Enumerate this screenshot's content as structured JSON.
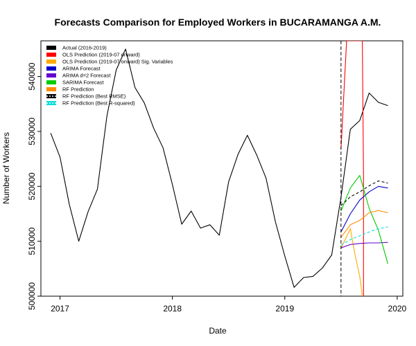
{
  "chart_data": {
    "type": "line",
    "title": "Forecasts Comparison for Employed Workers in BUCARAMANGA A.M.",
    "xlabel": "Date",
    "ylabel": "Number of Workers",
    "xlim": [
      2016.83,
      2020.05
    ],
    "ylim": [
      500000,
      546500
    ],
    "x_ticks": [
      2017,
      2018,
      2019,
      2020
    ],
    "x_tick_labels": [
      "2017",
      "2018",
      "2019",
      "2020"
    ],
    "y_ticks": [
      500000,
      510000,
      520000,
      530000,
      540000
    ],
    "y_tick_labels": [
      "500000",
      "510000",
      "520000",
      "530000",
      "540000"
    ],
    "grid": false,
    "legend_position": "top-left",
    "forecast_start": 2019.5,
    "series": [
      {
        "name": "Actual (2016-2019)",
        "color": "#000000",
        "dash": "solid",
        "x": [
          2016.917,
          2017.0,
          2017.083,
          2017.167,
          2017.25,
          2017.333,
          2017.417,
          2017.5,
          2017.583,
          2017.667,
          2017.75,
          2017.833,
          2017.917,
          2018.0,
          2018.083,
          2018.167,
          2018.25,
          2018.333,
          2018.417,
          2018.5,
          2018.583,
          2018.667,
          2018.75,
          2018.833,
          2018.917,
          2019.0,
          2019.083,
          2019.167,
          2019.25,
          2019.333,
          2019.417,
          2019.5,
          2019.583,
          2019.667,
          2019.75,
          2019.833,
          2019.917
        ],
        "y": [
          529700,
          525300,
          516700,
          510000,
          515400,
          519500,
          532800,
          541200,
          545000,
          538000,
          535200,
          530600,
          527000,
          520300,
          513100,
          515500,
          512400,
          513000,
          511100,
          520800,
          525800,
          529300,
          525700,
          521500,
          513500,
          507300,
          501600,
          503400,
          503600,
          505100,
          507500,
          518000,
          530400,
          532000,
          537000,
          535300,
          534700
        ]
      },
      {
        "name": "OLS Prediction (2019-07 onward)",
        "color": "#ff0000",
        "dash": "solid",
        "x": [
          2019.5,
          2019.55,
          2019.6,
          2019.67,
          2019.69,
          2019.7,
          2019.7
        ],
        "y": [
          526700,
          546500,
          546500,
          546500,
          546500,
          522000,
          500000
        ]
      },
      {
        "name": "OLS Prediction (2019-07 onward) Sig. Variables",
        "color": "#ffaa00",
        "dash": "solid",
        "x": [
          2019.5,
          2019.583,
          2019.625,
          2019.667,
          2019.69
        ],
        "y": [
          508700,
          512300,
          507500,
          503600,
          500000
        ]
      },
      {
        "name": "ARIMA Forecast",
        "color": "#0000cc",
        "dash": "solid",
        "x": [
          2019.5,
          2019.583,
          2019.667,
          2019.75,
          2019.833,
          2019.917
        ],
        "y": [
          511700,
          515000,
          517500,
          519000,
          520000,
          519700
        ]
      },
      {
        "name": "ARIMA d=2 Forecast",
        "color": "#6600cc",
        "dash": "solid",
        "x": [
          2019.5,
          2019.583,
          2019.667,
          2019.75,
          2019.833,
          2019.917
        ],
        "y": [
          508800,
          509400,
          509600,
          509700,
          509700,
          509800
        ]
      },
      {
        "name": "SARIMA Forecast",
        "color": "#00cc00",
        "dash": "solid",
        "x": [
          2019.5,
          2019.583,
          2019.667,
          2019.75,
          2019.833,
          2019.917
        ],
        "y": [
          515500,
          519700,
          522000,
          516000,
          512000,
          505900
        ]
      },
      {
        "name": "RF Prediction",
        "color": "#ff8c00",
        "dash": "solid",
        "x": [
          2019.5,
          2019.583,
          2019.667,
          2019.75,
          2019.833,
          2019.917
        ],
        "y": [
          510700,
          513000,
          513800,
          515200,
          515600,
          515200
        ]
      },
      {
        "name": "RF Prediction (Best RMSE)",
        "color": "#000000",
        "dash": "dashed",
        "x": [
          2019.5,
          2019.583,
          2019.667,
          2019.75,
          2019.833,
          2019.917
        ],
        "y": [
          516500,
          518100,
          519000,
          520100,
          521000,
          520600
        ]
      },
      {
        "name": "RF Prediction (Best R-squared)",
        "color": "#00dddd",
        "dash": "dashed",
        "x": [
          2019.5,
          2019.583,
          2019.667,
          2019.75,
          2019.833,
          2019.917
        ],
        "y": [
          509300,
          510300,
          511000,
          511700,
          512300,
          512600
        ]
      }
    ]
  }
}
